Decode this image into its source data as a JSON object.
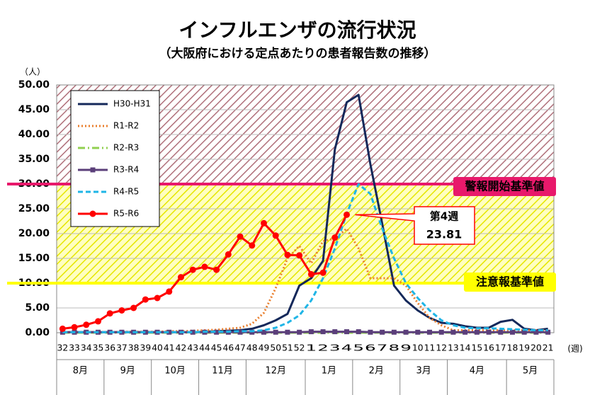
{
  "chart_data": {
    "type": "line",
    "title": "インフルエンザの流行状況",
    "subtitle": "（大阪府における定点あたりの患者報告数の推移）",
    "y_label": "（人）",
    "x_label": "(週)",
    "categories": [
      "32",
      "33",
      "34",
      "35",
      "36",
      "37",
      "38",
      "39",
      "40",
      "41",
      "42",
      "43",
      "44",
      "45",
      "46",
      "47",
      "48",
      "49",
      "50",
      "51",
      "52",
      "1",
      "2",
      "3",
      "4",
      "5",
      "6",
      "7",
      "8",
      "9",
      "10",
      "11",
      "12",
      "13",
      "14",
      "15",
      "16",
      "17",
      "18",
      "19",
      "20",
      "21"
    ],
    "months": [
      {
        "label": "8月",
        "span": 4
      },
      {
        "label": "9月",
        "span": 4
      },
      {
        "label": "10月",
        "span": 4
      },
      {
        "label": "11月",
        "span": 4
      },
      {
        "label": "12月",
        "span": 5
      },
      {
        "label": "1月",
        "span": 4
      },
      {
        "label": "2月",
        "span": 4
      },
      {
        "label": "3月",
        "span": 4
      },
      {
        "label": "4月",
        "span": 5
      },
      {
        "label": "5月",
        "span": 4
      }
    ],
    "ylim": [
      0,
      50
    ],
    "yticks": [
      {
        "value": 0,
        "label": "0.00"
      },
      {
        "value": 5,
        "label": "5.00"
      },
      {
        "value": 10,
        "label": "10.00"
      },
      {
        "value": 15,
        "label": "15.00"
      },
      {
        "value": 20,
        "label": "20.00"
      },
      {
        "value": 25,
        "label": "25.00"
      },
      {
        "value": 30,
        "label": "30.00"
      },
      {
        "value": 35,
        "label": "35.00"
      },
      {
        "value": 40,
        "label": "40.00"
      },
      {
        "value": 45,
        "label": "45.00"
      },
      {
        "value": 50,
        "label": "50.00"
      }
    ],
    "grid": true,
    "thresholds": [
      {
        "value": 30,
        "label": "警報開始基準値",
        "color": "#e8196b",
        "zone": "#8b2a3a"
      },
      {
        "value": 10,
        "label": "注意報基準値",
        "color": "#ffff00",
        "zone": "#e6e600"
      }
    ],
    "annotation": "第4週",
    "series": [
      {
        "name": "H30-H31",
        "color": "#14285a",
        "style": "solid",
        "marker": null,
        "values": [
          0.1,
          0.1,
          0.1,
          0.1,
          0.1,
          0.1,
          0.1,
          0.1,
          0.1,
          0.1,
          0.1,
          0.1,
          0.2,
          0.3,
          0.4,
          0.5,
          0.8,
          1.5,
          2.5,
          3.8,
          9.5,
          11,
          14.5,
          37,
          46.5,
          48,
          34,
          22,
          9.5,
          6.5,
          4.5,
          3,
          2,
          1.8,
          1.3,
          1,
          1,
          2.2,
          2.6,
          0.8,
          0.5,
          0.8
        ]
      },
      {
        "name": "R1-R2",
        "color": "#e97f2e",
        "style": "dotted",
        "marker": null,
        "values": [
          0.1,
          0.1,
          0.1,
          0.1,
          0.1,
          0.2,
          0.2,
          0.2,
          0.2,
          0.3,
          0.3,
          0.4,
          0.5,
          0.6,
          0.8,
          1,
          1.8,
          4,
          9,
          15,
          17.5,
          14,
          18.5,
          19,
          21,
          17,
          11,
          11,
          11,
          9.5,
          6,
          3,
          1.5,
          0.5,
          0.5,
          0.5,
          0.5,
          0.5,
          0.5,
          0.5,
          0.5,
          0.5
        ]
      },
      {
        "name": "R2-R3",
        "color": "#92d050",
        "style": "dashdot",
        "marker": null,
        "values": [
          0,
          0,
          0,
          0,
          0,
          0,
          0,
          0,
          0,
          0,
          0,
          0,
          0,
          0,
          0,
          0,
          0,
          0,
          0,
          0,
          0,
          0,
          0,
          0,
          0,
          0,
          0,
          0,
          0,
          0,
          0,
          0,
          0,
          0,
          0,
          0,
          0,
          0,
          0,
          0,
          0,
          0
        ]
      },
      {
        "name": "R3-R4",
        "color": "#5b3f7a",
        "style": "solid",
        "marker": "square",
        "values": [
          0.1,
          0.1,
          0.1,
          0.1,
          0.1,
          0.1,
          0.1,
          0.1,
          0.1,
          0.1,
          0.1,
          0.1,
          0.1,
          0.1,
          0.1,
          0.1,
          0.1,
          0.1,
          0.1,
          0.1,
          0.1,
          0.2,
          0.2,
          0.2,
          0.2,
          0.2,
          0.1,
          0.1,
          0.1,
          0.1,
          0.1,
          0.1,
          0.1,
          0.1,
          0.1,
          0.1,
          0.1,
          0.1,
          0.1,
          0.1,
          0.1,
          0.1
        ]
      },
      {
        "name": "R4-R5",
        "color": "#1fb5e6",
        "style": "dashed",
        "marker": null,
        "values": [
          0.1,
          0.1,
          0.1,
          0.1,
          0.1,
          0.1,
          0.1,
          0.1,
          0.1,
          0.1,
          0.1,
          0.1,
          0.2,
          0.2,
          0.2,
          0.3,
          0.3,
          0.5,
          1,
          2,
          3.5,
          6.5,
          11,
          17,
          24,
          30,
          28,
          21,
          15,
          10,
          7,
          4.5,
          2.5,
          1.5,
          1,
          0.9,
          0.9,
          0.8,
          0.7,
          0.6,
          0.5,
          0.5
        ]
      },
      {
        "name": "R5-R6",
        "color": "#ff0000",
        "style": "solid",
        "marker": "circle",
        "values": [
          0.8,
          1.1,
          1.6,
          2.3,
          3.9,
          4.5,
          5,
          6.7,
          7,
          8.3,
          11.2,
          12.7,
          13.3,
          12.7,
          15.8,
          19.4,
          17.6,
          22.1,
          19.6,
          15.7,
          15.6,
          11.8,
          12.1,
          19.2,
          23.81,
          null,
          null,
          null,
          null,
          null,
          null,
          null,
          null,
          null,
          null,
          null,
          null,
          null,
          null,
          null,
          null,
          null
        ],
        "value_labels": [
          null,
          null,
          null,
          null,
          null,
          null,
          null,
          null,
          null,
          null,
          null,
          null,
          null,
          null,
          null,
          null,
          null,
          null,
          null,
          null,
          null,
          null,
          null,
          null,
          "23.81",
          null,
          null,
          null,
          null,
          null,
          null,
          null,
          null,
          null,
          null,
          null,
          null,
          null,
          null,
          null,
          null,
          null
        ]
      }
    ]
  }
}
